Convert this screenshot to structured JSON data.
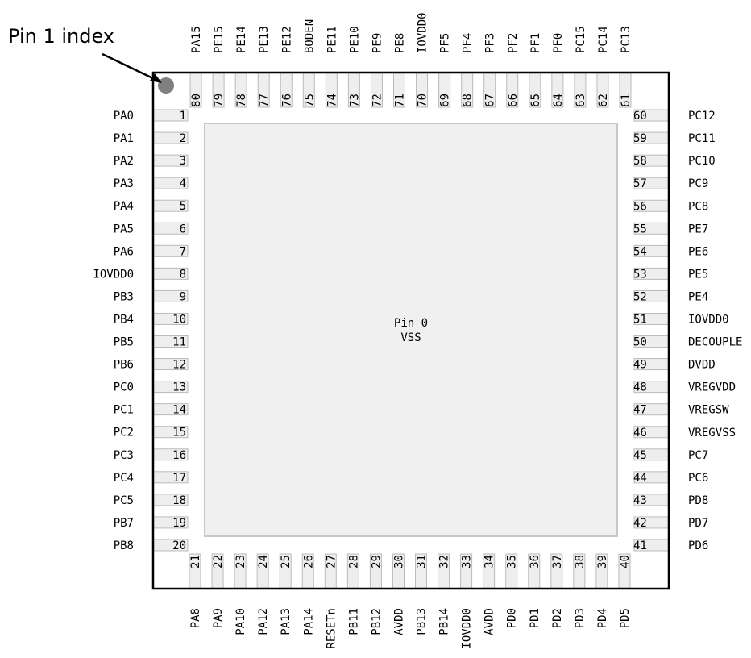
{
  "annotation": {
    "label": "Pin 1 index"
  },
  "center": {
    "line1": "Pin 0",
    "line2": "VSS"
  },
  "colors": {
    "pad": "#eeeeee",
    "pad_stroke": "#bbbbbb",
    "die": "#f0f0f0",
    "die_stroke": "#c8c8c8",
    "index_dot": "#808080",
    "outline": "#000000"
  },
  "left_pins": [
    {
      "num": "1",
      "name": "PA0"
    },
    {
      "num": "2",
      "name": "PA1"
    },
    {
      "num": "3",
      "name": "PA2"
    },
    {
      "num": "4",
      "name": "PA3"
    },
    {
      "num": "5",
      "name": "PA4"
    },
    {
      "num": "6",
      "name": "PA5"
    },
    {
      "num": "7",
      "name": "PA6"
    },
    {
      "num": "8",
      "name": "IOVDD0"
    },
    {
      "num": "9",
      "name": "PB3"
    },
    {
      "num": "10",
      "name": "PB4"
    },
    {
      "num": "11",
      "name": "PB5"
    },
    {
      "num": "12",
      "name": "PB6"
    },
    {
      "num": "13",
      "name": "PC0"
    },
    {
      "num": "14",
      "name": "PC1"
    },
    {
      "num": "15",
      "name": "PC2"
    },
    {
      "num": "16",
      "name": "PC3"
    },
    {
      "num": "17",
      "name": "PC4"
    },
    {
      "num": "18",
      "name": "PC5"
    },
    {
      "num": "19",
      "name": "PB7"
    },
    {
      "num": "20",
      "name": "PB8"
    }
  ],
  "bottom_pins": [
    {
      "num": "21",
      "name": "PA8"
    },
    {
      "num": "22",
      "name": "PA9"
    },
    {
      "num": "23",
      "name": "PA10"
    },
    {
      "num": "24",
      "name": "PA12"
    },
    {
      "num": "25",
      "name": "PA13"
    },
    {
      "num": "26",
      "name": "PA14"
    },
    {
      "num": "27",
      "name": "RESETn"
    },
    {
      "num": "28",
      "name": "PB11"
    },
    {
      "num": "29",
      "name": "PB12"
    },
    {
      "num": "30",
      "name": "AVDD"
    },
    {
      "num": "31",
      "name": "PB13"
    },
    {
      "num": "32",
      "name": "PB14"
    },
    {
      "num": "33",
      "name": "IOVDD0"
    },
    {
      "num": "34",
      "name": "AVDD"
    },
    {
      "num": "35",
      "name": "PD0"
    },
    {
      "num": "36",
      "name": "PD1"
    },
    {
      "num": "37",
      "name": "PD2"
    },
    {
      "num": "38",
      "name": "PD3"
    },
    {
      "num": "39",
      "name": "PD4"
    },
    {
      "num": "40",
      "name": "PD5"
    }
  ],
  "right_pins": [
    {
      "num": "41",
      "name": "PD6"
    },
    {
      "num": "42",
      "name": "PD7"
    },
    {
      "num": "43",
      "name": "PD8"
    },
    {
      "num": "44",
      "name": "PC6"
    },
    {
      "num": "45",
      "name": "PC7"
    },
    {
      "num": "46",
      "name": "VREGVSS"
    },
    {
      "num": "47",
      "name": "VREGSW"
    },
    {
      "num": "48",
      "name": "VREGVDD"
    },
    {
      "num": "49",
      "name": "DVDD"
    },
    {
      "num": "50",
      "name": "DECOUPLE"
    },
    {
      "num": "51",
      "name": "IOVDD0"
    },
    {
      "num": "52",
      "name": "PE4"
    },
    {
      "num": "53",
      "name": "PE5"
    },
    {
      "num": "54",
      "name": "PE6"
    },
    {
      "num": "55",
      "name": "PE7"
    },
    {
      "num": "56",
      "name": "PC8"
    },
    {
      "num": "57",
      "name": "PC9"
    },
    {
      "num": "58",
      "name": "PC10"
    },
    {
      "num": "59",
      "name": "PC11"
    },
    {
      "num": "60",
      "name": "PC12"
    }
  ],
  "top_pins": [
    {
      "num": "61",
      "name": "PC13"
    },
    {
      "num": "62",
      "name": "PC14"
    },
    {
      "num": "63",
      "name": "PC15"
    },
    {
      "num": "64",
      "name": "PF0"
    },
    {
      "num": "65",
      "name": "PF1"
    },
    {
      "num": "66",
      "name": "PF2"
    },
    {
      "num": "67",
      "name": "PF3"
    },
    {
      "num": "68",
      "name": "PF4"
    },
    {
      "num": "69",
      "name": "PF5"
    },
    {
      "num": "70",
      "name": "IOVDD0"
    },
    {
      "num": "71",
      "name": "PE8"
    },
    {
      "num": "72",
      "name": "PE9"
    },
    {
      "num": "73",
      "name": "PE10"
    },
    {
      "num": "74",
      "name": "PE11"
    },
    {
      "num": "75",
      "name": "BODEN"
    },
    {
      "num": "76",
      "name": "PE12"
    },
    {
      "num": "77",
      "name": "PE13"
    },
    {
      "num": "78",
      "name": "PE14"
    },
    {
      "num": "79",
      "name": "PE15"
    },
    {
      "num": "80",
      "name": "PA15"
    }
  ]
}
